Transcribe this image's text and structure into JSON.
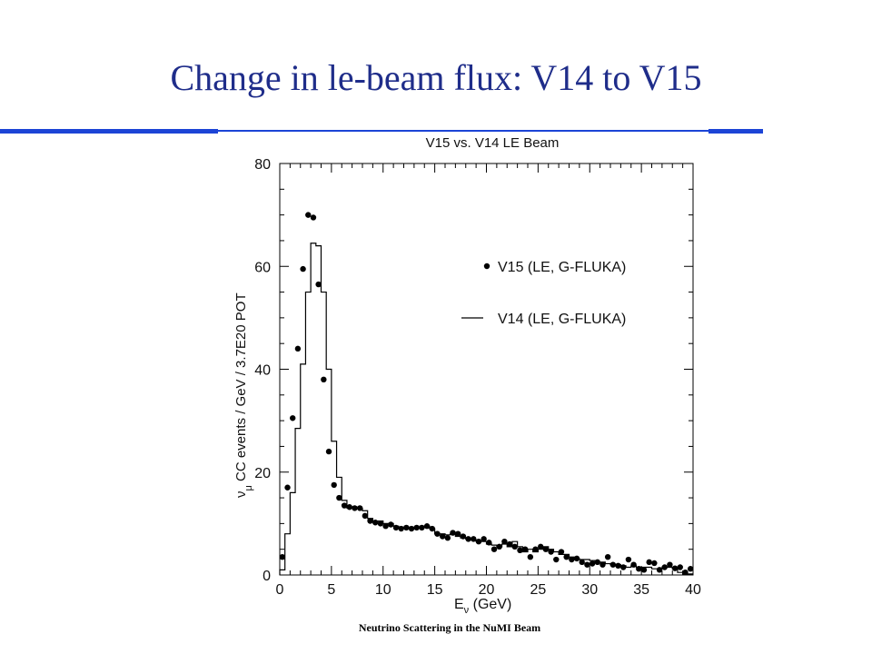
{
  "slide": {
    "title": "Change in le-beam flux: V14 to V15",
    "footer": "Neutrino Scattering in the NuMI Beam",
    "accent_color": "#1c44d6",
    "title_color": "#1f2d8a"
  },
  "chart_data": {
    "type": "scatter",
    "title": "V15 vs. V14 LE Beam",
    "xlabel_main": "E",
    "xlabel_sub": "ν",
    "xlabel_rest": " (GeV)",
    "ylabel_main": "ν",
    "ylabel_sub": "μ",
    "ylabel_rest": " CC events / GeV / 3.7E20 POT",
    "xlim": [
      0,
      40
    ],
    "ylim": [
      0,
      80
    ],
    "xticks": [
      0,
      5,
      10,
      15,
      20,
      25,
      30,
      35,
      40
    ],
    "yticks": [
      0,
      20,
      40,
      60,
      80
    ],
    "legend_position": "right",
    "grid": false,
    "series": [
      {
        "name": "V15 (LE, G-FLUKA)",
        "style": "points",
        "x": [
          0.25,
          0.75,
          1.25,
          1.75,
          2.25,
          2.75,
          3.25,
          3.75,
          4.25,
          4.75,
          5.25,
          5.75,
          6.25,
          6.75,
          7.25,
          7.75,
          8.25,
          8.75,
          9.25,
          9.75,
          10.25,
          10.75,
          11.25,
          11.75,
          12.25,
          12.75,
          13.25,
          13.75,
          14.25,
          14.75,
          15.25,
          15.75,
          16.25,
          16.75,
          17.25,
          17.75,
          18.25,
          18.75,
          19.25,
          19.75,
          20.25,
          20.75,
          21.25,
          21.75,
          22.25,
          22.75,
          23.25,
          23.75,
          24.25,
          24.75,
          25.25,
          25.75,
          26.25,
          26.75,
          27.25,
          27.75,
          28.25,
          28.75,
          29.25,
          29.75,
          30.25,
          30.75,
          31.25,
          31.75,
          32.25,
          32.75,
          33.25,
          33.75,
          34.25,
          34.75,
          35.25,
          35.75,
          36.25,
          36.75,
          37.25,
          37.75,
          38.25,
          38.75,
          39.25,
          39.75
        ],
        "y": [
          3.5,
          17,
          30.5,
          44,
          59.5,
          70,
          69.5,
          56.5,
          38,
          24,
          17.5,
          15,
          13.5,
          13.2,
          13,
          13,
          11.5,
          10.5,
          10.2,
          10,
          9.5,
          9.8,
          9.2,
          9,
          9.2,
          9,
          9.2,
          9.2,
          9.5,
          9,
          8,
          7.5,
          7.2,
          8.2,
          8,
          7.5,
          7,
          7,
          6.5,
          7,
          6.3,
          5,
          5.5,
          6.5,
          6,
          5.5,
          4.8,
          5,
          3.5,
          5,
          5.5,
          5,
          4.5,
          3,
          4.5,
          3.5,
          3,
          3.2,
          2.5,
          2,
          2.2,
          2.5,
          2,
          3.5,
          2,
          1.8,
          1.5,
          3,
          2,
          1.2,
          1,
          2.5,
          2.3,
          1,
          1.5,
          2,
          1.3,
          1.5,
          0.5,
          1.2
        ]
      },
      {
        "name": "V14 (LE, G-FLUKA)",
        "style": "step",
        "edges": [
          0,
          0.5,
          1,
          1.5,
          2,
          2.5,
          3,
          3.5,
          4,
          4.5,
          5,
          5.5,
          6,
          6.5,
          7,
          7.5,
          8,
          8.5,
          9,
          9.5,
          10,
          10.5,
          11,
          11.5,
          12,
          12.5,
          13,
          13.5,
          14,
          14.5,
          15,
          15.5,
          16,
          16.5,
          17,
          17.5,
          18,
          18.5,
          19,
          19.5,
          20,
          20.5,
          21,
          21.5,
          22,
          22.5,
          23,
          23.5,
          24,
          24.5,
          25,
          25.5,
          26,
          26.5,
          27,
          27.5,
          28,
          28.5,
          29,
          29.5,
          30,
          30.5,
          31,
          31.5,
          32,
          32.5,
          33,
          33.5,
          34,
          34.5,
          35,
          35.5,
          36,
          36.5,
          37,
          37.5,
          38,
          38.5,
          39,
          39.5,
          40
        ],
        "values": [
          1,
          8,
          16,
          28.5,
          41,
          55,
          64.5,
          64,
          55,
          40,
          26,
          19,
          14.5,
          13,
          13,
          13,
          12.5,
          11,
          10.5,
          10.5,
          10,
          10,
          9.5,
          9.3,
          9.3,
          9,
          9.3,
          9.3,
          9.5,
          9,
          8,
          8,
          7.8,
          8,
          7.5,
          7.2,
          7,
          6.8,
          6.5,
          6.5,
          6,
          5.8,
          5.5,
          6,
          5.5,
          6.5,
          5.5,
          4.5,
          5,
          4.5,
          5,
          5.5,
          5,
          4.5,
          4,
          4,
          3.5,
          3.2,
          3,
          3,
          2.8,
          2.5,
          2.5,
          2.2,
          2,
          2,
          1.8,
          1.5,
          1.8,
          1.5,
          1.5,
          1.5,
          1.2,
          1.2,
          1.5,
          1.5,
          1.2,
          0.5,
          0.2,
          0.2
        ]
      }
    ]
  }
}
